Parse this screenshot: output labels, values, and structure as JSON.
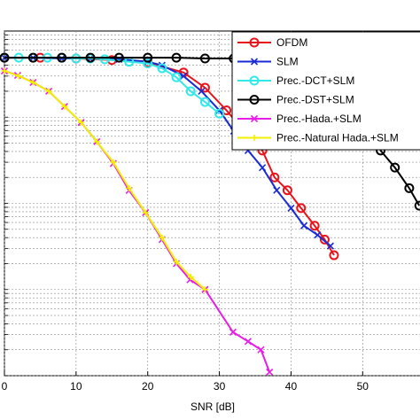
{
  "chart_data": {
    "type": "line",
    "xlabel": "SNR [dB]",
    "xlim": [
      0,
      58
    ],
    "xticks": [
      0,
      10,
      20,
      30,
      40,
      50
    ],
    "ylim": [
      0.0001,
      1
    ],
    "log_y": true,
    "grid": true,
    "legend": "upper right",
    "series": [
      {
        "name": "OFDM",
        "color": "#e8141c",
        "marker": "o",
        "x": [
          0,
          5,
          10,
          15,
          20,
          25,
          28,
          31,
          34,
          36,
          37.7,
          39.5,
          41.4,
          43.3,
          44.7,
          46
        ],
        "values": [
          0.49,
          0.49,
          0.48,
          0.46,
          0.43,
          0.33,
          0.22,
          0.12,
          0.06,
          0.041,
          0.02,
          0.0142,
          0.0088,
          0.0055,
          0.0038,
          0.0025
        ]
      },
      {
        "name": "SLM",
        "color": "#1a2bd6",
        "marker": "x",
        "x": [
          0,
          4,
          8,
          12,
          16,
          20,
          22,
          25,
          27.5,
          30,
          32,
          34,
          36,
          38,
          40,
          41.8,
          43.7,
          45.5
        ],
        "values": [
          0.49,
          0.49,
          0.48,
          0.48,
          0.47,
          0.44,
          0.4,
          0.3,
          0.2,
          0.12,
          0.069,
          0.041,
          0.026,
          0.0142,
          0.0088,
          0.0055,
          0.0043,
          0.0032
        ]
      },
      {
        "name": "Prec.-DCT+SLM",
        "color": "#33e8e8",
        "marker": "o",
        "x": [
          0,
          2,
          4,
          6,
          8,
          10,
          12,
          14,
          17.4,
          20,
          22,
          24,
          26,
          28,
          30
        ],
        "values": [
          0.49,
          0.49,
          0.49,
          0.49,
          0.49,
          0.48,
          0.48,
          0.47,
          0.44,
          0.42,
          0.37,
          0.29,
          0.2,
          0.15,
          0.11
        ]
      },
      {
        "name": "Prec.-DST+SLM",
        "color": "#000000",
        "marker": "o",
        "x": [
          0,
          4,
          8,
          12,
          16,
          20,
          24,
          28,
          32,
          36,
          40,
          44,
          48,
          50,
          52.5,
          54.5,
          56.5,
          57.9
        ],
        "values": [
          0.49,
          0.49,
          0.49,
          0.49,
          0.49,
          0.49,
          0.49,
          0.48,
          0.48,
          0.46,
          0.44,
          0.39,
          0.27,
          0.17,
          0.041,
          0.026,
          0.015,
          0.0094
        ]
      },
      {
        "name": "Prec.-Hada.+SLM",
        "color": "#e61ee6",
        "marker": "x",
        "x": [
          0,
          1.85,
          4,
          6.2,
          8.4,
          10.7,
          12.9,
          15.2,
          17.4,
          19.7,
          22,
          24,
          25.9,
          28,
          31.9,
          34,
          35.8,
          37
        ],
        "values": [
          0.344,
          0.306,
          0.253,
          0.2,
          0.133,
          0.087,
          0.052,
          0.029,
          0.0141,
          0.0078,
          0.0038,
          0.002,
          0.0013,
          0.001,
          0.00032,
          0.00025,
          0.0002,
          0.00011
        ]
      },
      {
        "name": "Prec.-Natural Hada.+SLM",
        "color": "#f0f000",
        "marker": "+",
        "x": [
          0,
          2,
          4,
          6.2,
          8.4,
          10.7,
          12.9,
          15.2,
          17.4,
          19.7,
          22,
          24,
          26,
          28
        ],
        "values": [
          0.344,
          0.3,
          0.253,
          0.2,
          0.133,
          0.087,
          0.052,
          0.03,
          0.015,
          0.0078,
          0.004,
          0.0021,
          0.0014,
          0.001
        ]
      }
    ]
  }
}
